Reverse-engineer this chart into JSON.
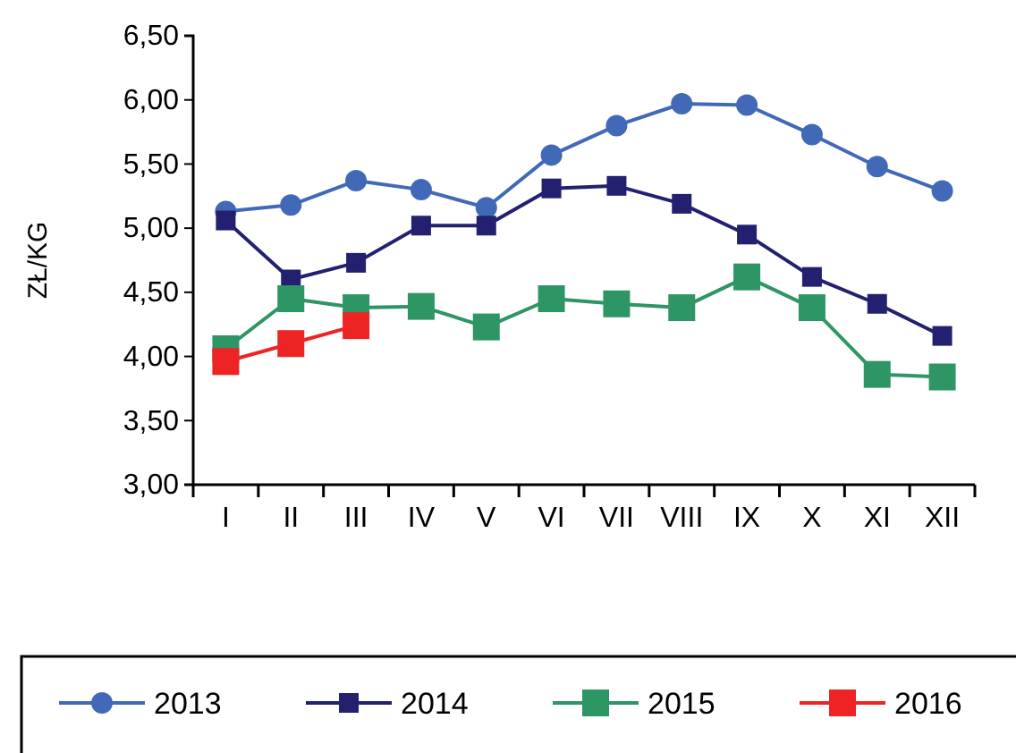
{
  "chart_data": {
    "type": "line",
    "ylabel": "ZŁ/KG",
    "categories": [
      "I",
      "II",
      "III",
      "IV",
      "V",
      "VI",
      "VII",
      "VIII",
      "IX",
      "X",
      "XI",
      "XII"
    ],
    "series": [
      {
        "name": "2013",
        "color": "#4169b8",
        "marker": "circle",
        "values": [
          5.13,
          5.18,
          5.37,
          5.3,
          5.16,
          5.57,
          5.8,
          5.97,
          5.96,
          5.73,
          5.48,
          5.29
        ]
      },
      {
        "name": "2014",
        "color": "#232070",
        "marker": "square",
        "values": [
          5.06,
          4.6,
          4.73,
          5.02,
          5.02,
          5.31,
          5.33,
          5.19,
          4.95,
          4.62,
          4.41,
          4.16
        ]
      },
      {
        "name": "2015",
        "color": "#2e9565",
        "marker": "square",
        "values": [
          4.06,
          4.45,
          4.38,
          4.39,
          4.23,
          4.45,
          4.41,
          4.38,
          4.62,
          4.38,
          3.86,
          3.84
        ]
      },
      {
        "name": "2016",
        "color": "#ee2424",
        "marker": "square",
        "values": [
          3.96,
          4.1,
          4.24,
          null,
          null,
          null,
          null,
          null,
          null,
          null,
          null,
          null
        ]
      }
    ],
    "ylim": [
      3,
      6.5
    ],
    "yticks": [
      {
        "value": 3,
        "label": "3,00"
      },
      {
        "value": 3.5,
        "label": "3,50"
      },
      {
        "value": 4,
        "label": "4,00"
      },
      {
        "value": 4.5,
        "label": "4,50"
      },
      {
        "value": 5,
        "label": "5,00"
      },
      {
        "value": 5.5,
        "label": "5,50"
      },
      {
        "value": 6,
        "label": "6,00"
      },
      {
        "value": 6.5,
        "label": "6,50"
      }
    ],
    "grid": false,
    "legend": "bottom"
  }
}
